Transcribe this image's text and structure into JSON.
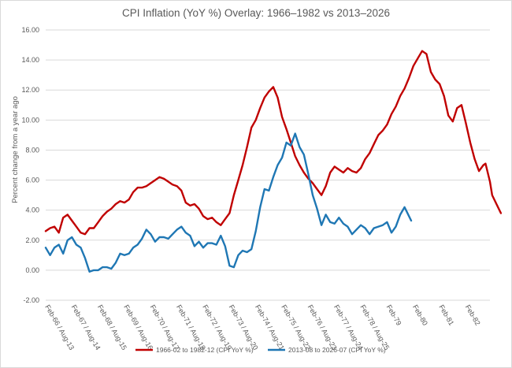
{
  "chart_data": {
    "type": "line",
    "title": "CPI Inflation (YoY %) Overlay: 1966–1982 vs 2013–2026",
    "ylabel": "Percent change from a year ago",
    "xlabel": "",
    "ylim": [
      -2,
      16
    ],
    "yticks": [
      "-2.00",
      "0.00",
      "2.00",
      "4.00",
      "6.00",
      "8.00",
      "10.00",
      "12.00",
      "14.00",
      "16.00"
    ],
    "grid": true,
    "legend_position": "bottom",
    "x_months": 203,
    "x_ticks": [
      {
        "month": 0,
        "label": "Feb-66 / Aug-13"
      },
      {
        "month": 12,
        "label": "Feb-67 / Aug-14"
      },
      {
        "month": 24,
        "label": "Feb-68 / Aug-15"
      },
      {
        "month": 36,
        "label": "Feb-69 / Aug-16"
      },
      {
        "month": 48,
        "label": "Feb-70 / Aug-17"
      },
      {
        "month": 60,
        "label": "Feb-71 / Aug-18"
      },
      {
        "month": 72,
        "label": "Feb-72 / Aug-19"
      },
      {
        "month": 84,
        "label": "Feb-73 / Aug-20"
      },
      {
        "month": 96,
        "label": "Feb-74 / Aug-21"
      },
      {
        "month": 108,
        "label": "Feb-75 / Aug-22"
      },
      {
        "month": 120,
        "label": "Feb-76 / Aug-23"
      },
      {
        "month": 132,
        "label": "Feb-77 / Aug-24"
      },
      {
        "month": 144,
        "label": "Feb-78 / Aug-25"
      },
      {
        "month": 156,
        "label": "Feb-79"
      },
      {
        "month": 168,
        "label": "Feb-80"
      },
      {
        "month": 180,
        "label": "Feb-81"
      },
      {
        "month": 192,
        "label": "Feb-82"
      }
    ],
    "series": [
      {
        "name": "1966-02 to 1982-12 (CPI YoY %)",
        "color": "#c00000",
        "points": [
          [
            0,
            2.6
          ],
          [
            2,
            2.8
          ],
          [
            4,
            2.9
          ],
          [
            6,
            2.5
          ],
          [
            8,
            3.5
          ],
          [
            10,
            3.7
          ],
          [
            12,
            3.3
          ],
          [
            14,
            2.9
          ],
          [
            16,
            2.5
          ],
          [
            18,
            2.4
          ],
          [
            20,
            2.8
          ],
          [
            22,
            2.8
          ],
          [
            24,
            3.2
          ],
          [
            26,
            3.6
          ],
          [
            28,
            3.9
          ],
          [
            30,
            4.1
          ],
          [
            32,
            4.4
          ],
          [
            34,
            4.6
          ],
          [
            36,
            4.5
          ],
          [
            38,
            4.7
          ],
          [
            40,
            5.2
          ],
          [
            42,
            5.5
          ],
          [
            44,
            5.5
          ],
          [
            46,
            5.6
          ],
          [
            48,
            5.8
          ],
          [
            50,
            6.0
          ],
          [
            52,
            6.2
          ],
          [
            54,
            6.1
          ],
          [
            56,
            5.9
          ],
          [
            58,
            5.7
          ],
          [
            60,
            5.6
          ],
          [
            62,
            5.3
          ],
          [
            64,
            4.5
          ],
          [
            66,
            4.3
          ],
          [
            68,
            4.4
          ],
          [
            70,
            4.1
          ],
          [
            72,
            3.6
          ],
          [
            74,
            3.4
          ],
          [
            76,
            3.5
          ],
          [
            78,
            3.2
          ],
          [
            80,
            3.0
          ],
          [
            82,
            3.4
          ],
          [
            84,
            3.8
          ],
          [
            86,
            5.0
          ],
          [
            88,
            6.0
          ],
          [
            90,
            7.0
          ],
          [
            92,
            8.2
          ],
          [
            94,
            9.5
          ],
          [
            96,
            10.0
          ],
          [
            98,
            10.8
          ],
          [
            100,
            11.5
          ],
          [
            102,
            11.9
          ],
          [
            104,
            12.2
          ],
          [
            106,
            11.5
          ],
          [
            108,
            10.2
          ],
          [
            110,
            9.4
          ],
          [
            112,
            8.5
          ],
          [
            114,
            7.6
          ],
          [
            116,
            7.0
          ],
          [
            118,
            6.5
          ],
          [
            120,
            6.1
          ],
          [
            122,
            5.8
          ],
          [
            124,
            5.4
          ],
          [
            126,
            5.0
          ],
          [
            128,
            5.6
          ],
          [
            130,
            6.5
          ],
          [
            132,
            6.9
          ],
          [
            134,
            6.7
          ],
          [
            136,
            6.5
          ],
          [
            138,
            6.8
          ],
          [
            140,
            6.6
          ],
          [
            142,
            6.5
          ],
          [
            144,
            6.8
          ],
          [
            146,
            7.4
          ],
          [
            148,
            7.8
          ],
          [
            150,
            8.4
          ],
          [
            152,
            9.0
          ],
          [
            154,
            9.3
          ],
          [
            156,
            9.7
          ],
          [
            158,
            10.4
          ],
          [
            160,
            10.9
          ],
          [
            162,
            11.6
          ],
          [
            164,
            12.1
          ],
          [
            166,
            12.8
          ],
          [
            168,
            13.6
          ],
          [
            170,
            14.1
          ],
          [
            172,
            14.6
          ],
          [
            174,
            14.4
          ],
          [
            176,
            13.2
          ],
          [
            178,
            12.7
          ],
          [
            180,
            12.4
          ],
          [
            182,
            11.6
          ],
          [
            184,
            10.3
          ],
          [
            186,
            9.9
          ],
          [
            188,
            10.8
          ],
          [
            190,
            11.0
          ],
          [
            192,
            9.8
          ],
          [
            194,
            8.5
          ],
          [
            196,
            7.4
          ],
          [
            198,
            6.6
          ],
          [
            200,
            7.0
          ],
          [
            201,
            7.1
          ],
          [
            203,
            5.9
          ],
          [
            204,
            5.0
          ],
          [
            206,
            4.4
          ],
          [
            208,
            3.8
          ]
        ]
      },
      {
        "name": "2013-08 to 2026-07 (CPI YoY %)",
        "color": "#1f77b4",
        "points": [
          [
            0,
            1.5
          ],
          [
            2,
            1.0
          ],
          [
            4,
            1.5
          ],
          [
            6,
            1.7
          ],
          [
            8,
            1.1
          ],
          [
            10,
            2.0
          ],
          [
            12,
            2.2
          ],
          [
            14,
            1.7
          ],
          [
            16,
            1.5
          ],
          [
            18,
            0.8
          ],
          [
            20,
            -0.1
          ],
          [
            22,
            0.0
          ],
          [
            24,
            0.0
          ],
          [
            26,
            0.2
          ],
          [
            28,
            0.2
          ],
          [
            30,
            0.1
          ],
          [
            32,
            0.5
          ],
          [
            34,
            1.1
          ],
          [
            36,
            1.0
          ],
          [
            38,
            1.1
          ],
          [
            40,
            1.5
          ],
          [
            42,
            1.7
          ],
          [
            44,
            2.1
          ],
          [
            46,
            2.7
          ],
          [
            48,
            2.4
          ],
          [
            50,
            1.9
          ],
          [
            52,
            2.2
          ],
          [
            54,
            2.2
          ],
          [
            56,
            2.1
          ],
          [
            58,
            2.4
          ],
          [
            60,
            2.7
          ],
          [
            62,
            2.9
          ],
          [
            64,
            2.5
          ],
          [
            66,
            2.3
          ],
          [
            68,
            1.6
          ],
          [
            70,
            1.9
          ],
          [
            72,
            1.5
          ],
          [
            74,
            1.8
          ],
          [
            76,
            1.8
          ],
          [
            78,
            1.7
          ],
          [
            80,
            2.3
          ],
          [
            82,
            1.6
          ],
          [
            84,
            0.3
          ],
          [
            86,
            0.2
          ],
          [
            88,
            1.0
          ],
          [
            90,
            1.3
          ],
          [
            92,
            1.2
          ],
          [
            94,
            1.4
          ],
          [
            96,
            2.6
          ],
          [
            98,
            4.2
          ],
          [
            100,
            5.4
          ],
          [
            102,
            5.3
          ],
          [
            104,
            6.2
          ],
          [
            106,
            7.0
          ],
          [
            108,
            7.5
          ],
          [
            110,
            8.5
          ],
          [
            112,
            8.3
          ],
          [
            114,
            9.1
          ],
          [
            116,
            8.2
          ],
          [
            118,
            7.7
          ],
          [
            120,
            6.4
          ],
          [
            122,
            5.0
          ],
          [
            124,
            4.1
          ],
          [
            126,
            3.0
          ],
          [
            128,
            3.7
          ],
          [
            130,
            3.2
          ],
          [
            132,
            3.1
          ],
          [
            134,
            3.5
          ],
          [
            136,
            3.1
          ],
          [
            138,
            2.9
          ],
          [
            140,
            2.4
          ],
          [
            142,
            2.7
          ],
          [
            144,
            3.0
          ],
          [
            146,
            2.8
          ],
          [
            148,
            2.4
          ],
          [
            150,
            2.8
          ],
          [
            152,
            2.9
          ],
          [
            154,
            3.0
          ],
          [
            156,
            3.2
          ],
          [
            158,
            2.5
          ],
          [
            160,
            2.9
          ],
          [
            162,
            3.7
          ],
          [
            164,
            4.2
          ],
          [
            166,
            3.6
          ],
          [
            167,
            3.3
          ]
        ]
      }
    ]
  }
}
